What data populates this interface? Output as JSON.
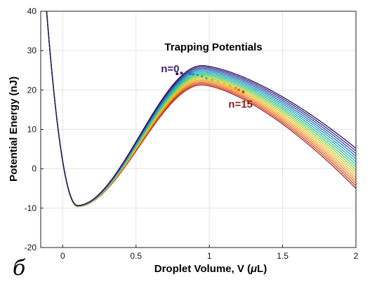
{
  "panel_label": "б",
  "chart_data": {
    "type": "line",
    "title": "Trapping Potentials",
    "xlabel_text": "Droplet Volume, V (",
    "xlabel_mu": "μ",
    "xlabel_unit": "L)",
    "ylabel": "Potential Energy (nJ)",
    "xlim": [
      -0.15,
      2.0
    ],
    "ylim": [
      -20,
      40
    ],
    "xticks": [
      0,
      0.5,
      1,
      1.5,
      2
    ],
    "xtick_labels": [
      "0",
      "0.5",
      "1",
      "1.5",
      "2"
    ],
    "yticks": [
      -20,
      -10,
      0,
      10,
      20,
      30,
      40
    ],
    "ytick_labels": [
      "-20",
      "-10",
      "0",
      "10",
      "20",
      "30",
      "40"
    ],
    "grid": true,
    "annotations": [
      {
        "text": "n=0",
        "x": 0.67,
        "y": 24.5,
        "color": "#3b1f63"
      },
      {
        "text": "n=15",
        "x": 1.13,
        "y": 15.5,
        "color": "#8b1a1a"
      }
    ],
    "series_count": 16,
    "series_first_label": "n=0",
    "series_last_label": "n=15",
    "model_note_minimum": {
      "x": 0.1,
      "y": -9.3
    },
    "peaks": [
      {
        "n": 0,
        "x": 0.95,
        "y": 26.2
      },
      {
        "n": 15,
        "x": 0.95,
        "y": 21.3
      }
    ],
    "endpoints_at_x2": [
      {
        "n": 0,
        "y": 5.2
      },
      {
        "n": 15,
        "y": -5.0
      }
    ],
    "maxima_markers": [
      {
        "x": 0.78,
        "y": 24.1
      },
      {
        "x": 0.81,
        "y": 24.3
      },
      {
        "x": 0.84,
        "y": 24.3
      },
      {
        "x": 0.87,
        "y": 24.2
      },
      {
        "x": 0.89,
        "y": 24.0
      },
      {
        "x": 0.92,
        "y": 23.8
      },
      {
        "x": 0.95,
        "y": 23.5
      },
      {
        "x": 0.98,
        "y": 23.0
      },
      {
        "x": 1.02,
        "y": 22.6
      },
      {
        "x": 1.06,
        "y": 22.2
      },
      {
        "x": 1.1,
        "y": 21.6
      },
      {
        "x": 1.14,
        "y": 21.0
      },
      {
        "x": 1.18,
        "y": 20.5
      },
      {
        "x": 1.2,
        "y": 20.0
      },
      {
        "x": 1.23,
        "y": 19.5
      }
    ],
    "colors": [
      "#30104e",
      "#3b2a87",
      "#2f4fa8",
      "#2c72b8",
      "#2a93c0",
      "#27aeb6",
      "#2cbf98",
      "#4fca74",
      "#86d04f",
      "#b9cf34",
      "#e2c52a",
      "#f4a826",
      "#f08a22",
      "#e4641f",
      "#c9401d",
      "#a8211a"
    ]
  }
}
